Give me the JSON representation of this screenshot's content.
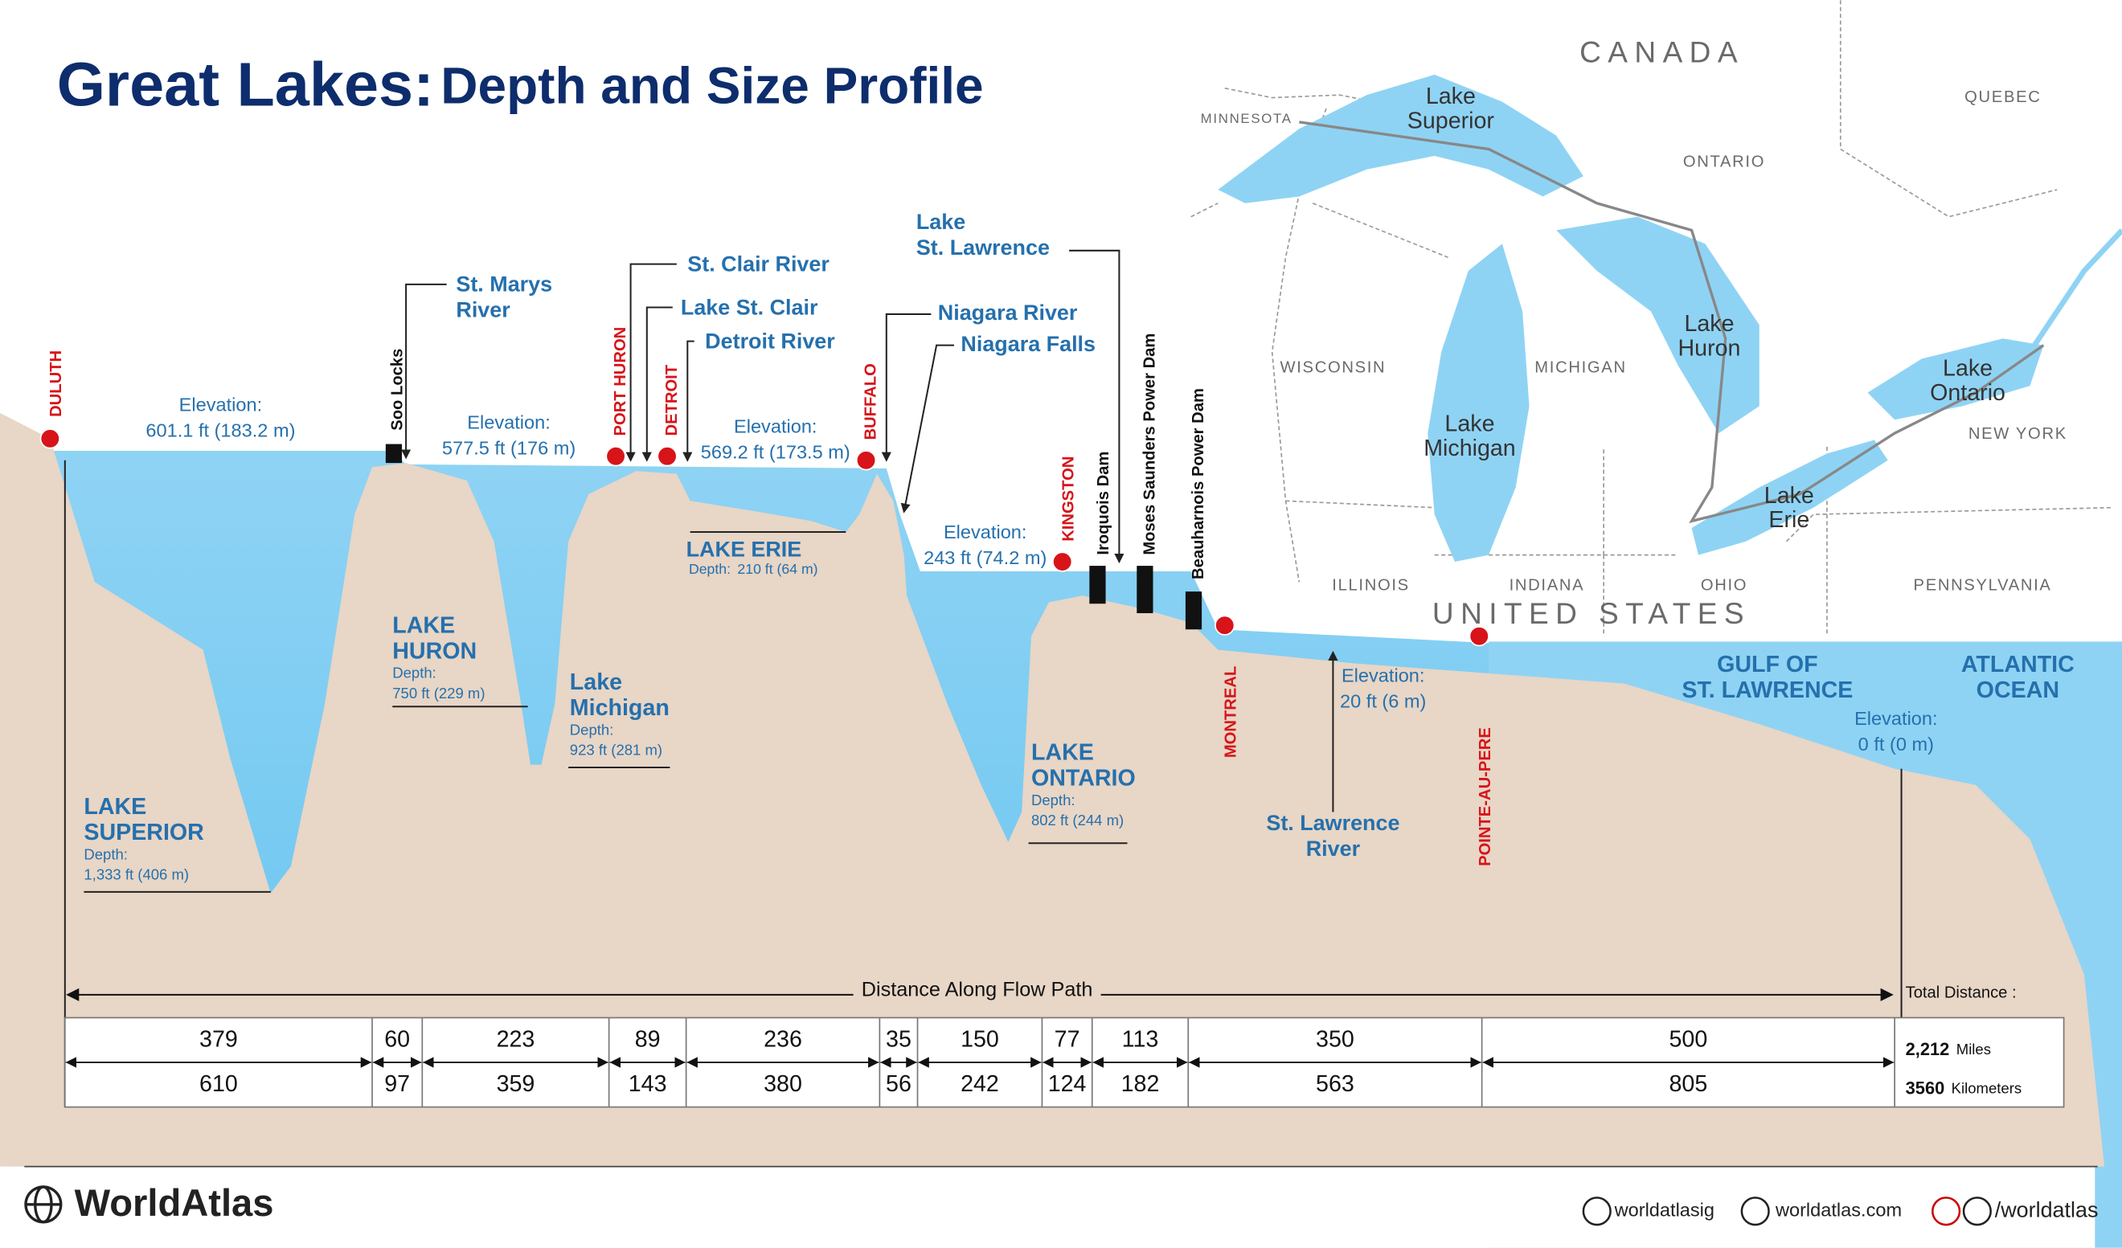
{
  "title": {
    "bold": "Great Lakes:",
    "rest": "Depth and Size Profile"
  },
  "map": {
    "regions": [
      "CANADA",
      "MINNESOTA",
      "QUEBEC",
      "ONTARIO",
      "WISCONSIN",
      "MICHIGAN",
      "NEW YORK",
      "ILLINOIS",
      "INDIANA",
      "OHIO",
      "PENNSYLVANIA",
      "UNITED STATES"
    ],
    "lakes": [
      [
        "Lake",
        "Superior"
      ],
      [
        "Lake",
        "Huron"
      ],
      [
        "Lake",
        "Michigan"
      ],
      [
        "Lake",
        "Ontario"
      ],
      [
        "Lake",
        "Erie"
      ]
    ]
  },
  "cities": [
    "DULUTH",
    "PORT HURON",
    "DETROIT",
    "BUFFALO",
    "KINGSTON",
    "MONTREAL",
    "POINTE-AU-PERE"
  ],
  "structures": [
    "Soo Locks",
    "Iroquois Dam",
    "Moses Saunders Power Dam",
    "Beauharnois Power Dam"
  ],
  "waterways": [
    [
      "St. Marys",
      "River"
    ],
    [
      "St. Clair River"
    ],
    [
      "Lake St. Clair"
    ],
    [
      "Detroit River"
    ],
    [
      "Niagara River"
    ],
    [
      "Niagara Falls"
    ],
    [
      "Lake",
      "St. Lawrence"
    ],
    [
      "St. Lawrence",
      "River"
    ]
  ],
  "elevation_label": "Elevation:",
  "elevations": [
    "601.1 ft (183.2 m)",
    "577.5 ft (176 m)",
    "569.2 ft (173.5 m)",
    "243 ft (74.2 m)",
    "20 ft (6 m)",
    "0 ft (0 m)"
  ],
  "depth_label": "Depth:",
  "lakes": [
    {
      "name": [
        "LAKE",
        "SUPERIOR"
      ],
      "depth": "1,333 ft (406 m)"
    },
    {
      "name": [
        "LAKE",
        "HURON"
      ],
      "depth": "750 ft (229 m)"
    },
    {
      "name": [
        "Lake",
        "Michigan"
      ],
      "depth": "923 ft (281 m)"
    },
    {
      "name": [
        "LAKE ERIE"
      ],
      "depth": "210 ft (64 m)"
    },
    {
      "name": [
        "LAKE",
        "ONTARIO"
      ],
      "depth": "802 ft (244 m)"
    }
  ],
  "seas": [
    [
      "GULF OF",
      "ST. LAWRENCE"
    ],
    [
      "ATLANTIC",
      "OCEAN"
    ]
  ],
  "distance": {
    "title": "Distance Along Flow Path",
    "total_label": "Total Distance :",
    "miles": [
      379,
      60,
      223,
      89,
      236,
      35,
      150,
      77,
      113,
      350,
      500
    ],
    "km": [
      610,
      97,
      359,
      143,
      380,
      56,
      242,
      124,
      182,
      563,
      805
    ],
    "total_miles": "2,212",
    "miles_unit": "Miles",
    "total_km": "3560",
    "km_unit": "Kilometers"
  },
  "footer": {
    "brand": "WorldAtlas",
    "instagram": "worldatlasig",
    "website": "worldatlas.com",
    "social": "/worldatlas"
  }
}
